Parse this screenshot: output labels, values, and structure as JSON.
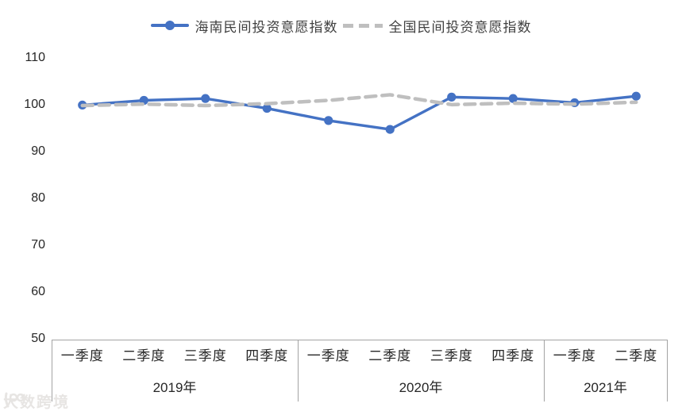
{
  "chart_data": {
    "type": "line",
    "title": "",
    "xlabel": "",
    "ylabel": "",
    "ylim": [
      50,
      110
    ],
    "yticks": [
      110,
      100,
      90,
      80,
      70,
      60,
      50
    ],
    "grid": false,
    "legend_position": "top",
    "x_groups": [
      {
        "year": "2019年",
        "quarters": [
          "一季度",
          "二季度",
          "三季度",
          "四季度"
        ]
      },
      {
        "year": "2020年",
        "quarters": [
          "一季度",
          "二季度",
          "三季度",
          "四季度"
        ]
      },
      {
        "year": "2021年",
        "quarters": [
          "一季度",
          "二季度"
        ]
      }
    ],
    "series": [
      {
        "name": "海南民间投资意愿指数",
        "color": "#4472c4",
        "line_style": "solid",
        "marker": "circle",
        "values": [
          100.1,
          101.1,
          101.5,
          99.4,
          96.8,
          94.9,
          101.8,
          101.5,
          100.6,
          102.0
        ]
      },
      {
        "name": "全国民间投资意愿指数",
        "color": "#bfbfbf",
        "line_style": "dashed",
        "marker": "none",
        "values": [
          100.0,
          100.3,
          100.0,
          100.4,
          101.1,
          102.3,
          100.2,
          100.5,
          100.3,
          100.7
        ]
      }
    ]
  },
  "axis_color": "#a3a3a3",
  "watermark": {
    "text": "大数跨境"
  }
}
